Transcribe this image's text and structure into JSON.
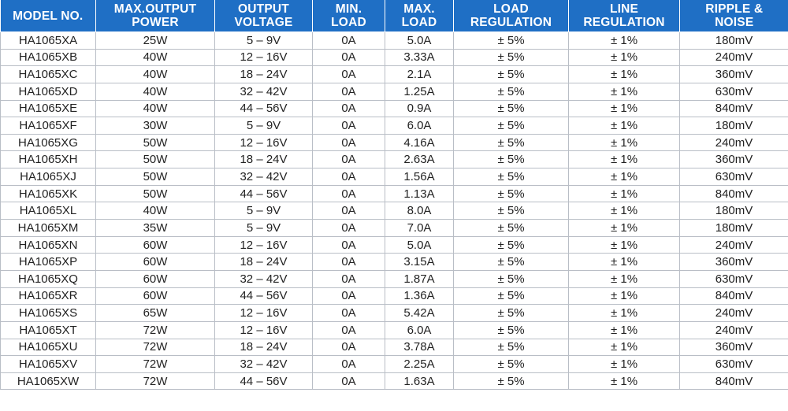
{
  "table": {
    "columns": [
      "MODEL NO.",
      "MAX.OUTPUT\nPOWER",
      "OUTPUT\nVOLTAGE",
      "MIN.\nLOAD",
      "MAX.\nLOAD",
      "LOAD\nREGULATION",
      "LINE\nREGULATION",
      "RIPPLE &\nNOISE"
    ],
    "rows": [
      [
        "HA1065XA",
        "25W",
        "5 – 9V",
        "0A",
        "5.0A",
        "± 5%",
        "± 1%",
        "180mV"
      ],
      [
        "HA1065XB",
        "40W",
        "12 – 16V",
        "0A",
        "3.33A",
        "± 5%",
        "± 1%",
        "240mV"
      ],
      [
        "HA1065XC",
        "40W",
        "18 – 24V",
        "0A",
        "2.1A",
        "± 5%",
        "± 1%",
        "360mV"
      ],
      [
        "HA1065XD",
        "40W",
        "32 – 42V",
        "0A",
        "1.25A",
        "± 5%",
        "± 1%",
        "630mV"
      ],
      [
        "HA1065XE",
        "40W",
        "44 – 56V",
        "0A",
        "0.9A",
        "± 5%",
        "± 1%",
        "840mV"
      ],
      [
        "HA1065XF",
        "30W",
        "5 – 9V",
        "0A",
        "6.0A",
        "± 5%",
        "± 1%",
        "180mV"
      ],
      [
        "HA1065XG",
        "50W",
        "12 – 16V",
        "0A",
        "4.16A",
        "± 5%",
        "± 1%",
        "240mV"
      ],
      [
        "HA1065XH",
        "50W",
        "18 – 24V",
        "0A",
        "2.63A",
        "± 5%",
        "± 1%",
        "360mV"
      ],
      [
        "HA1065XJ",
        "50W",
        "32 – 42V",
        "0A",
        "1.56A",
        "± 5%",
        "± 1%",
        "630mV"
      ],
      [
        "HA1065XK",
        "50W",
        "44 – 56V",
        "0A",
        "1.13A",
        "± 5%",
        "± 1%",
        "840mV"
      ],
      [
        "HA1065XL",
        "40W",
        "5 – 9V",
        "0A",
        "8.0A",
        "± 5%",
        "± 1%",
        "180mV"
      ],
      [
        "HA1065XM",
        "35W",
        "5 – 9V",
        "0A",
        "7.0A",
        "± 5%",
        "± 1%",
        "180mV"
      ],
      [
        "HA1065XN",
        "60W",
        "12 – 16V",
        "0A",
        "5.0A",
        "± 5%",
        "± 1%",
        "240mV"
      ],
      [
        "HA1065XP",
        "60W",
        "18 – 24V",
        "0A",
        "3.15A",
        "± 5%",
        "± 1%",
        "360mV"
      ],
      [
        "HA1065XQ",
        "60W",
        "32 – 42V",
        "0A",
        "1.87A",
        "± 5%",
        "± 1%",
        "630mV"
      ],
      [
        "HA1065XR",
        "60W",
        "44 – 56V",
        "0A",
        "1.36A",
        "± 5%",
        "± 1%",
        "840mV"
      ],
      [
        "HA1065XS",
        "65W",
        "12 – 16V",
        "0A",
        "5.42A",
        "± 5%",
        "± 1%",
        "240mV"
      ],
      [
        "HA1065XT",
        "72W",
        "12 – 16V",
        "0A",
        "6.0A",
        "± 5%",
        "± 1%",
        "240mV"
      ],
      [
        "HA1065XU",
        "72W",
        "18 – 24V",
        "0A",
        "3.78A",
        "± 5%",
        "± 1%",
        "360mV"
      ],
      [
        "HA1065XV",
        "72W",
        "32 – 42V",
        "0A",
        "2.25A",
        "± 5%",
        "± 1%",
        "630mV"
      ],
      [
        "HA1065XW",
        "72W",
        "44 – 56V",
        "0A",
        "1.63A",
        "± 5%",
        "± 1%",
        "840mV"
      ]
    ]
  },
  "colors": {
    "header_bg": "#1f6fc5",
    "header_text": "#ffffff",
    "grid_line": "#b9bec6",
    "cell_text": "#222222"
  }
}
